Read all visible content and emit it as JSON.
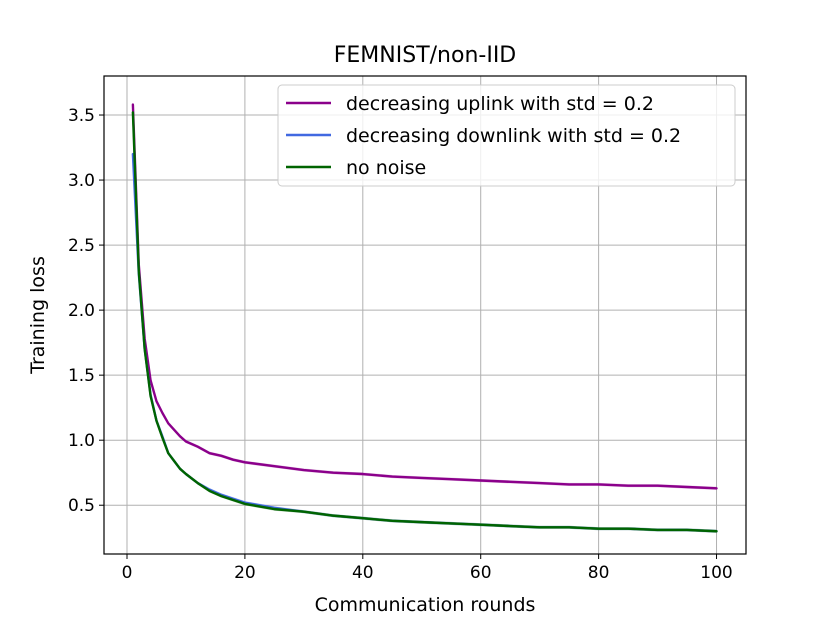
{
  "chart_data": {
    "type": "line",
    "title": "FEMNIST/non-IID",
    "xlabel": "Communication rounds",
    "ylabel": "Training loss",
    "xlim": [
      -3.9,
      105
    ],
    "ylim": [
      0.125,
      3.8
    ],
    "xticks": [
      0,
      20,
      40,
      60,
      80,
      100
    ],
    "yticks": [
      0.5,
      1.0,
      1.5,
      2.0,
      2.5,
      3.0,
      3.5
    ],
    "xtick_labels": [
      "0",
      "20",
      "40",
      "60",
      "80",
      "100"
    ],
    "ytick_labels": [
      "0.5",
      "1.0",
      "1.5",
      "2.0",
      "2.5",
      "3.0",
      "3.5"
    ],
    "grid": true,
    "legend_position": "top-right",
    "series": [
      {
        "name": "decreasing uplink with std = 0.2",
        "color": "#8b008b",
        "band_opacity": 0.25,
        "x": [
          1,
          2,
          3,
          4,
          5,
          6,
          7,
          8,
          9,
          10,
          12,
          14,
          16,
          18,
          20,
          25,
          30,
          35,
          40,
          45,
          50,
          55,
          60,
          65,
          70,
          75,
          80,
          85,
          90,
          95,
          100
        ],
        "values": [
          3.58,
          2.35,
          1.78,
          1.46,
          1.3,
          1.21,
          1.13,
          1.08,
          1.03,
          0.99,
          0.95,
          0.9,
          0.88,
          0.85,
          0.83,
          0.8,
          0.77,
          0.75,
          0.74,
          0.72,
          0.71,
          0.7,
          0.69,
          0.68,
          0.67,
          0.66,
          0.66,
          0.65,
          0.65,
          0.64,
          0.63
        ]
      },
      {
        "name": "decreasing downlink with std = 0.2",
        "color": "#4169e1",
        "band_opacity": 0.25,
        "x": [
          1,
          2,
          3,
          4,
          5,
          6,
          7,
          8,
          9,
          10,
          12,
          14,
          16,
          18,
          20,
          25,
          30,
          35,
          40,
          45,
          50,
          55,
          60,
          65,
          70,
          75,
          80,
          85,
          90,
          95,
          100
        ],
        "values": [
          3.2,
          2.28,
          1.7,
          1.35,
          1.15,
          1.03,
          0.9,
          0.84,
          0.78,
          0.74,
          0.67,
          0.62,
          0.58,
          0.55,
          0.52,
          0.48,
          0.45,
          0.42,
          0.4,
          0.38,
          0.37,
          0.36,
          0.35,
          0.34,
          0.33,
          0.33,
          0.32,
          0.32,
          0.31,
          0.31,
          0.3
        ]
      },
      {
        "name": "no noise",
        "color": "#006400",
        "band_opacity": 0.25,
        "x": [
          1,
          2,
          3,
          4,
          5,
          6,
          7,
          8,
          9,
          10,
          12,
          14,
          16,
          18,
          20,
          25,
          30,
          35,
          40,
          45,
          50,
          55,
          60,
          65,
          70,
          75,
          80,
          85,
          90,
          95,
          100
        ],
        "values": [
          3.52,
          2.3,
          1.7,
          1.34,
          1.15,
          1.02,
          0.9,
          0.84,
          0.78,
          0.74,
          0.67,
          0.61,
          0.57,
          0.54,
          0.51,
          0.47,
          0.45,
          0.42,
          0.4,
          0.38,
          0.37,
          0.36,
          0.35,
          0.34,
          0.33,
          0.33,
          0.32,
          0.32,
          0.31,
          0.31,
          0.3
        ]
      }
    ]
  }
}
